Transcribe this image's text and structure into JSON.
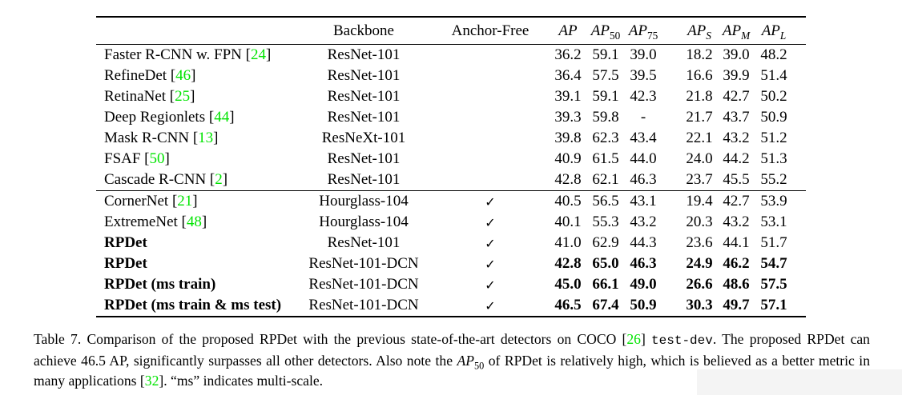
{
  "colors": {
    "citation_green": "#00e400",
    "text": "#000000",
    "watermark": "#f4f4f4"
  },
  "table": {
    "header": {
      "method": "",
      "backbone": "Backbone",
      "anchor_free": "Anchor-Free",
      "metrics": [
        {
          "base": "AP",
          "sub": ""
        },
        {
          "base": "AP",
          "sub": "50"
        },
        {
          "base": "AP",
          "sub": "75"
        },
        {
          "base": "AP",
          "sub": "S"
        },
        {
          "base": "AP",
          "sub": "M"
        },
        {
          "base": "AP",
          "sub": "L"
        }
      ]
    },
    "checkmark": "✓",
    "groups": [
      {
        "rows": [
          {
            "method": "Faster R-CNN w. FPN",
            "cite": "24",
            "backbone": "ResNet-101",
            "anchor_free": false,
            "bold_method": false,
            "bold_values": false,
            "values": [
              "36.2",
              "59.1",
              "39.0",
              "18.2",
              "39.0",
              "48.2"
            ]
          },
          {
            "method": "RefineDet",
            "cite": "46",
            "backbone": "ResNet-101",
            "anchor_free": false,
            "bold_method": false,
            "bold_values": false,
            "values": [
              "36.4",
              "57.5",
              "39.5",
              "16.6",
              "39.9",
              "51.4"
            ]
          },
          {
            "method": "RetinaNet",
            "cite": "25",
            "backbone": "ResNet-101",
            "anchor_free": false,
            "bold_method": false,
            "bold_values": false,
            "values": [
              "39.1",
              "59.1",
              "42.3",
              "21.8",
              "42.7",
              "50.2"
            ]
          },
          {
            "method": "Deep Regionlets",
            "cite": "44",
            "backbone": "ResNet-101",
            "anchor_free": false,
            "bold_method": false,
            "bold_values": false,
            "values": [
              "39.3",
              "59.8",
              "-",
              "21.7",
              "43.7",
              "50.9"
            ]
          },
          {
            "method": "Mask R-CNN",
            "cite": "13",
            "backbone": "ResNeXt-101",
            "anchor_free": false,
            "bold_method": false,
            "bold_values": false,
            "values": [
              "39.8",
              "62.3",
              "43.4",
              "22.1",
              "43.2",
              "51.2"
            ]
          },
          {
            "method": "FSAF",
            "cite": "50",
            "backbone": "ResNet-101",
            "anchor_free": false,
            "bold_method": false,
            "bold_values": false,
            "values": [
              "40.9",
              "61.5",
              "44.0",
              "24.0",
              "44.2",
              "51.3"
            ]
          },
          {
            "method": "Cascade R-CNN",
            "cite": "2",
            "backbone": "ResNet-101",
            "anchor_free": false,
            "bold_method": false,
            "bold_values": false,
            "values": [
              "42.8",
              "62.1",
              "46.3",
              "23.7",
              "45.5",
              "55.2"
            ]
          }
        ]
      },
      {
        "rows": [
          {
            "method": "CornerNet",
            "cite": "21",
            "backbone": "Hourglass-104",
            "anchor_free": true,
            "bold_method": false,
            "bold_values": false,
            "values": [
              "40.5",
              "56.5",
              "43.1",
              "19.4",
              "42.7",
              "53.9"
            ]
          },
          {
            "method": "ExtremeNet",
            "cite": "48",
            "backbone": "Hourglass-104",
            "anchor_free": true,
            "bold_method": false,
            "bold_values": false,
            "values": [
              "40.1",
              "55.3",
              "43.2",
              "20.3",
              "43.2",
              "53.1"
            ]
          },
          {
            "method": "RPDet",
            "cite": "",
            "backbone": "ResNet-101",
            "anchor_free": true,
            "bold_method": true,
            "bold_values": false,
            "values": [
              "41.0",
              "62.9",
              "44.3",
              "23.6",
              "44.1",
              "51.7"
            ]
          },
          {
            "method": "RPDet",
            "cite": "",
            "backbone": "ResNet-101-DCN",
            "anchor_free": true,
            "bold_method": true,
            "bold_values": true,
            "values": [
              "42.8",
              "65.0",
              "46.3",
              "24.9",
              "46.2",
              "54.7"
            ]
          },
          {
            "method": "RPDet (ms train)",
            "cite": "",
            "backbone": "ResNet-101-DCN",
            "anchor_free": true,
            "bold_method": true,
            "bold_values": true,
            "values": [
              "45.0",
              "66.1",
              "49.0",
              "26.6",
              "48.6",
              "57.5"
            ]
          },
          {
            "method": "RPDet (ms train & ms test)",
            "cite": "",
            "backbone": "ResNet-101-DCN",
            "anchor_free": true,
            "bold_method": true,
            "bold_values": true,
            "values": [
              "46.5",
              "67.4",
              "50.9",
              "30.3",
              "49.7",
              "57.1"
            ]
          }
        ]
      }
    ]
  },
  "caption": {
    "segments": [
      {
        "text": "Table 7. Comparison of the proposed RPDet with the previous state-of-the-art detectors on COCO ["
      },
      {
        "text": "26",
        "color": "green"
      },
      {
        "text": "] "
      },
      {
        "text": "test-dev",
        "font": "mono"
      },
      {
        "text": ". The proposed RPDet can achieve 46.5 AP, significantly surpasses all other detectors. Also note the "
      },
      {
        "text": "AP",
        "italic": true
      },
      {
        "text": "50",
        "sub": true
      },
      {
        "text": " of RPDet is relatively high, which is believed as a better metric in many applications ["
      },
      {
        "text": "32",
        "color": "green"
      },
      {
        "text": "]. “ms” indicates multi-scale."
      }
    ]
  }
}
